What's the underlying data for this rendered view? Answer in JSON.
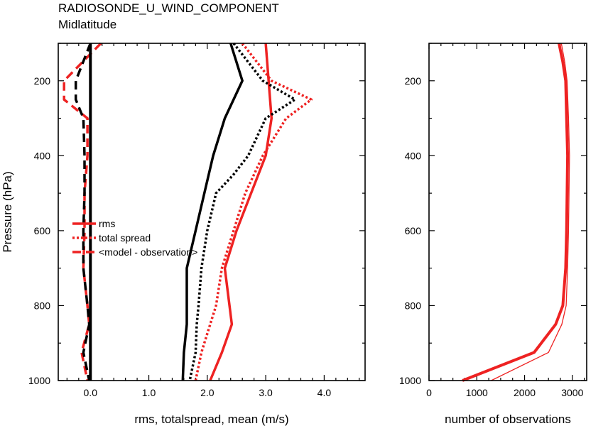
{
  "figure": {
    "title": "RADIOSONDE_U_WIND_COMPONENT",
    "subtitle": "Midlatitude"
  },
  "colors": {
    "red": "#ee2222",
    "black": "#000000"
  },
  "chart_data": [
    {
      "type": "line",
      "title": "RADIOSONDE_U_WIND_COMPONENT",
      "subtitle": "Midlatitude",
      "xlabel": "rms, totalspread, mean (m/s)",
      "ylabel": "Pressure (hPa)",
      "xlim": [
        -0.55,
        4.7
      ],
      "ylim": [
        1000,
        100
      ],
      "y_reversed": true,
      "x_ticks": [
        "0.0",
        "1.0",
        "2.0",
        "3.0",
        "4.0"
      ],
      "y_ticks": [
        "200",
        "400",
        "600",
        "800",
        "1000"
      ],
      "legend": {
        "placement": "left-middle",
        "entries": [
          "rms",
          "total spread",
          "<model - observation>"
        ]
      },
      "series": [
        {
          "name": "rms",
          "color": "#ee2222",
          "style": "solid",
          "points": [
            [
              3.0,
              100
            ],
            [
              3.05,
              200
            ],
            [
              3.1,
              300
            ],
            [
              3.0,
              400
            ],
            [
              2.75,
              500
            ],
            [
              2.5,
              600
            ],
            [
              2.3,
              700
            ],
            [
              2.38,
              800
            ],
            [
              2.42,
              850
            ],
            [
              2.25,
              925
            ],
            [
              2.05,
              1000
            ]
          ]
        },
        {
          "name": "total spread",
          "color": "#ee2222",
          "style": "dotted",
          "points": [
            [
              2.6,
              100
            ],
            [
              3.1,
              200
            ],
            [
              3.78,
              250
            ],
            [
              3.35,
              300
            ],
            [
              2.95,
              400
            ],
            [
              2.65,
              500
            ],
            [
              2.45,
              600
            ],
            [
              2.25,
              700
            ],
            [
              2.15,
              800
            ],
            [
              2.05,
              850
            ],
            [
              1.9,
              925
            ],
            [
              1.8,
              1000
            ]
          ]
        },
        {
          "name": "<model - observation>",
          "color": "#ee2222",
          "style": "dashed",
          "points": [
            [
              0.18,
              100
            ],
            [
              -0.45,
              200
            ],
            [
              -0.45,
              250
            ],
            [
              -0.05,
              300
            ],
            [
              -0.05,
              400
            ],
            [
              -0.1,
              500
            ],
            [
              -0.1,
              600
            ],
            [
              -0.12,
              700
            ],
            [
              -0.05,
              800
            ],
            [
              -0.02,
              850
            ],
            [
              -0.15,
              925
            ],
            [
              -0.05,
              1000
            ]
          ]
        },
        {
          "color": "#000000",
          "style": "solid",
          "points": [
            [
              2.4,
              100
            ],
            [
              2.6,
              200
            ],
            [
              2.3,
              300
            ],
            [
              2.1,
              400
            ],
            [
              1.95,
              500
            ],
            [
              1.8,
              600
            ],
            [
              1.65,
              700
            ],
            [
              1.65,
              800
            ],
            [
              1.65,
              850
            ],
            [
              1.6,
              925
            ],
            [
              1.58,
              1000
            ]
          ]
        },
        {
          "color": "#000000",
          "style": "dotted",
          "points": [
            [
              2.45,
              100
            ],
            [
              2.95,
              200
            ],
            [
              3.5,
              250
            ],
            [
              3.0,
              300
            ],
            [
              2.7,
              400
            ],
            [
              2.45,
              450
            ],
            [
              2.15,
              500
            ],
            [
              2.0,
              600
            ],
            [
              1.9,
              700
            ],
            [
              1.85,
              800
            ],
            [
              1.82,
              850
            ],
            [
              1.8,
              925
            ],
            [
              1.7,
              1000
            ]
          ]
        },
        {
          "color": "#000000",
          "style": "dashed",
          "points": [
            [
              0.0,
              100
            ],
            [
              -0.25,
              200
            ],
            [
              -0.25,
              250
            ],
            [
              -0.12,
              300
            ],
            [
              -0.1,
              400
            ],
            [
              -0.1,
              500
            ],
            [
              -0.12,
              600
            ],
            [
              -0.12,
              700
            ],
            [
              -0.05,
              800
            ],
            [
              -0.02,
              850
            ],
            [
              -0.12,
              925
            ],
            [
              -0.02,
              1000
            ]
          ]
        },
        {
          "color": "#000000",
          "style": "solid-thick",
          "points": [
            [
              0.0,
              100
            ],
            [
              0.0,
              1000
            ]
          ]
        }
      ]
    },
    {
      "type": "line",
      "xlabel": "number of observations",
      "ylabel": "",
      "xlim": [
        0,
        3300
      ],
      "ylim": [
        1000,
        100
      ],
      "y_reversed": true,
      "x_ticks": [
        "0",
        "1000",
        "2000",
        "3000"
      ],
      "y_ticks": [
        "200",
        "400",
        "600",
        "800",
        "1000"
      ],
      "series": [
        {
          "color": "#ee2222",
          "style": "solid-thick",
          "points": [
            [
              2720,
              100
            ],
            [
              2800,
              150
            ],
            [
              2860,
              200
            ],
            [
              2880,
              300
            ],
            [
              2900,
              400
            ],
            [
              2890,
              500
            ],
            [
              2880,
              600
            ],
            [
              2860,
              700
            ],
            [
              2800,
              800
            ],
            [
              2650,
              850
            ],
            [
              2200,
              925
            ],
            [
              700,
              1000
            ]
          ]
        },
        {
          "color": "#ee2222",
          "style": "solid-thin",
          "points": [
            [
              2770,
              100
            ],
            [
              2840,
              150
            ],
            [
              2890,
              200
            ],
            [
              2920,
              300
            ],
            [
              2940,
              400
            ],
            [
              2930,
              500
            ],
            [
              2920,
              600
            ],
            [
              2900,
              700
            ],
            [
              2870,
              800
            ],
            [
              2780,
              850
            ],
            [
              2500,
              925
            ],
            [
              1300,
              1000
            ]
          ]
        }
      ]
    }
  ]
}
